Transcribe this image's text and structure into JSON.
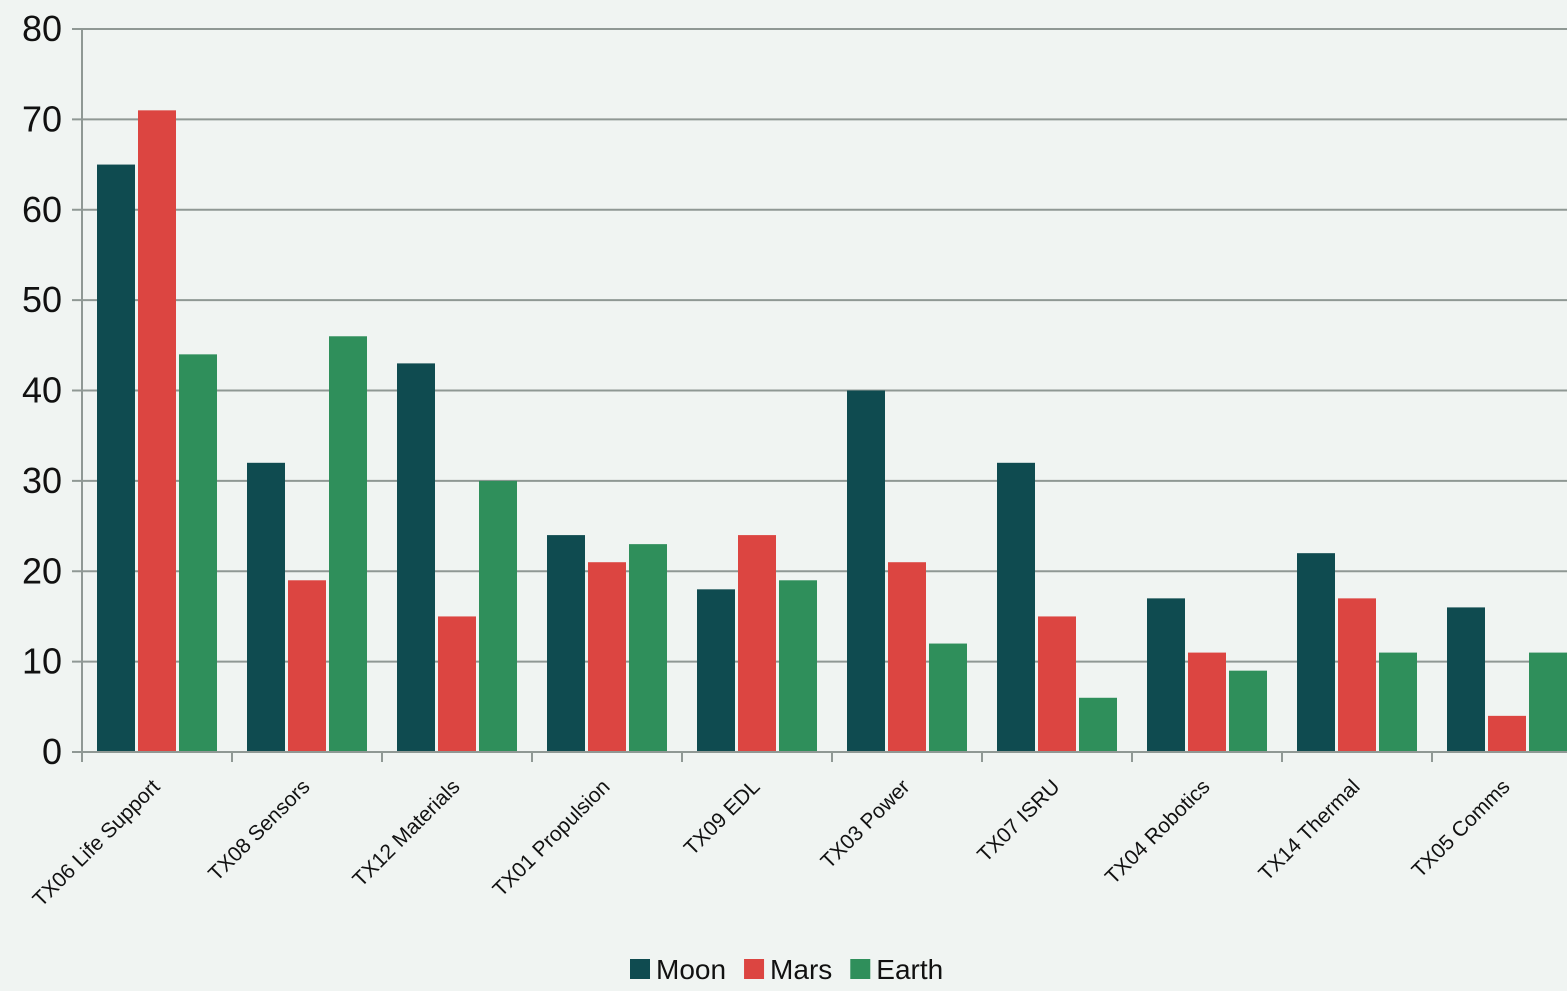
{
  "chart_data": {
    "type": "bar",
    "title": "",
    "xlabel": "",
    "ylabel": "",
    "categories": [
      "TX06 Life Support",
      "TX08 Sensors",
      "TX12 Materials",
      "TX01 Propulsion",
      "TX09 EDL",
      "TX03 Power",
      "TX07 ISRU",
      "TX04 Robotics",
      "TX14 Thermal",
      "TX05 Comms"
    ],
    "series": [
      {
        "name": "Moon",
        "color": "#0f4b50",
        "values": [
          65,
          32,
          43,
          24,
          18,
          40,
          32,
          17,
          22,
          16
        ]
      },
      {
        "name": "Mars",
        "color": "#dc4541",
        "values": [
          71,
          19,
          15,
          21,
          24,
          21,
          15,
          11,
          17,
          4
        ]
      },
      {
        "name": "Earth",
        "color": "#2f8f5b",
        "values": [
          44,
          46,
          30,
          23,
          19,
          12,
          6,
          9,
          11,
          11
        ]
      }
    ],
    "ylim": [
      0,
      80
    ],
    "yticks": [
      0,
      10,
      20,
      30,
      40,
      50,
      60,
      70,
      80
    ],
    "grid": true,
    "legend_position": "bottom-center"
  }
}
